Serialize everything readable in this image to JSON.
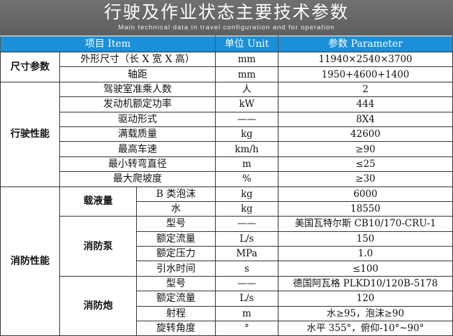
{
  "title": "行驶及作业状态主要技术参数",
  "subtitle": "Main technical data in travel configuration and for operation",
  "colors": {
    "banner": "#666666",
    "header": "#1b8fd8"
  },
  "headers": {
    "item": "项目 Item",
    "unit": "单位 Unit",
    "param": "参数 Parameter"
  },
  "groups": [
    {
      "name": "尺寸参数",
      "rows": [
        {
          "item": "外形尺寸（长 X 宽 X 高）",
          "unit": "mm",
          "value": "11940×2540×3700"
        },
        {
          "item": "轴距",
          "unit": "mm",
          "value": "1950+4600+1400"
        }
      ]
    },
    {
      "name": "行驶性能",
      "rows": [
        {
          "item": "驾驶室准乘人数",
          "unit": "人",
          "value": "2"
        },
        {
          "item": "发动机额定功率",
          "unit": "kW",
          "value": "444"
        },
        {
          "item": "驱动形式",
          "unit": "——",
          "value": "8X4"
        },
        {
          "item": "满载质量",
          "unit": "kg",
          "value": "42600"
        },
        {
          "item": "最高车速",
          "unit": "km/h",
          "value": "≥90"
        },
        {
          "item": "最小转弯直径",
          "unit": "m",
          "value": "≤25"
        },
        {
          "item": "最大爬坡度",
          "unit": "%",
          "value": "≥30"
        }
      ]
    },
    {
      "name": "消防性能",
      "subgroups": [
        {
          "name": "载液量",
          "rows": [
            {
              "item": "B 类泡沫",
              "unit": "kg",
              "value": "6000"
            },
            {
              "item": "水",
              "unit": "kg",
              "value": "18550"
            }
          ]
        },
        {
          "name": "消防泵",
          "rows": [
            {
              "item": "型号",
              "unit": "——",
              "value": "美国瓦特尔斯 CB10/170-CRU-1"
            },
            {
              "item": "额定流量",
              "unit": "L/s",
              "value": "150"
            },
            {
              "item": "额定压力",
              "unit": "MPa",
              "value": "1.0"
            },
            {
              "item": "引水时间",
              "unit": "s",
              "value": "≤100"
            }
          ]
        },
        {
          "name": "消防炮",
          "rows": [
            {
              "item": "型号",
              "unit": "——",
              "value": "德国阿瓦格 PLKD10/120B-5178"
            },
            {
              "item": "额定流量",
              "unit": "L/s",
              "value": "120"
            },
            {
              "item": "射程",
              "unit": "m",
              "value": "水≥95，泡沫≥90"
            },
            {
              "item": "旋转角度",
              "unit": "°",
              "value": "水平 355°，俯仰-10°~90°"
            }
          ]
        }
      ]
    }
  ]
}
